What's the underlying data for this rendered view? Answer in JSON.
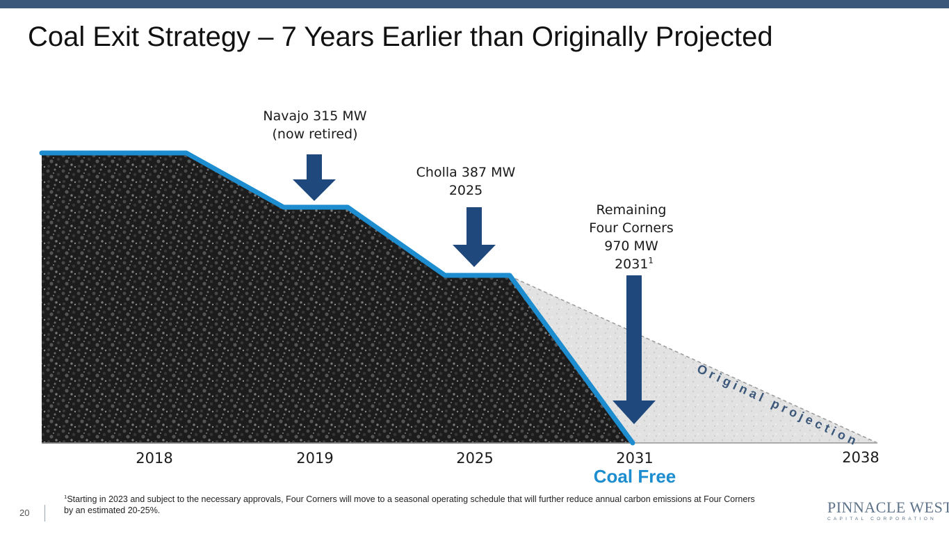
{
  "title": "Coal Exit Strategy – 7 Years Earlier than Originally Projected",
  "retirements": [
    {
      "lines": [
        "Navajo 315 MW",
        "(now retired)"
      ]
    },
    {
      "lines": [
        "Cholla 387 MW",
        "2025"
      ]
    },
    {
      "lines": [
        "Remaining",
        "Four Corners",
        "970 MW",
        "2031"
      ],
      "footnote_marker": "1"
    }
  ],
  "timeline_years": [
    "2018",
    "2019",
    "2025",
    "2031",
    "2038"
  ],
  "coal_free_label": "Coal Free",
  "original_projection_label": "Original projection",
  "footnote": {
    "marker": "1",
    "text": "Starting in 2023 and subject to the necessary approvals, Four Corners will move to a seasonal operating schedule that will further reduce annual carbon emissions at Four Corners by an estimated 20-25%."
  },
  "page_number": "20",
  "logo": {
    "name": "PINNACLE WEST",
    "tagline": "CAPITAL CORPORATION"
  },
  "colors": {
    "top_bar": "#3b5779",
    "step_line": "#1d8dd0",
    "arrow": "#1f497d",
    "coal_free": "#1d8dd0",
    "coal": "#1b1b1b",
    "original_projection_fill": "#dedede"
  }
}
